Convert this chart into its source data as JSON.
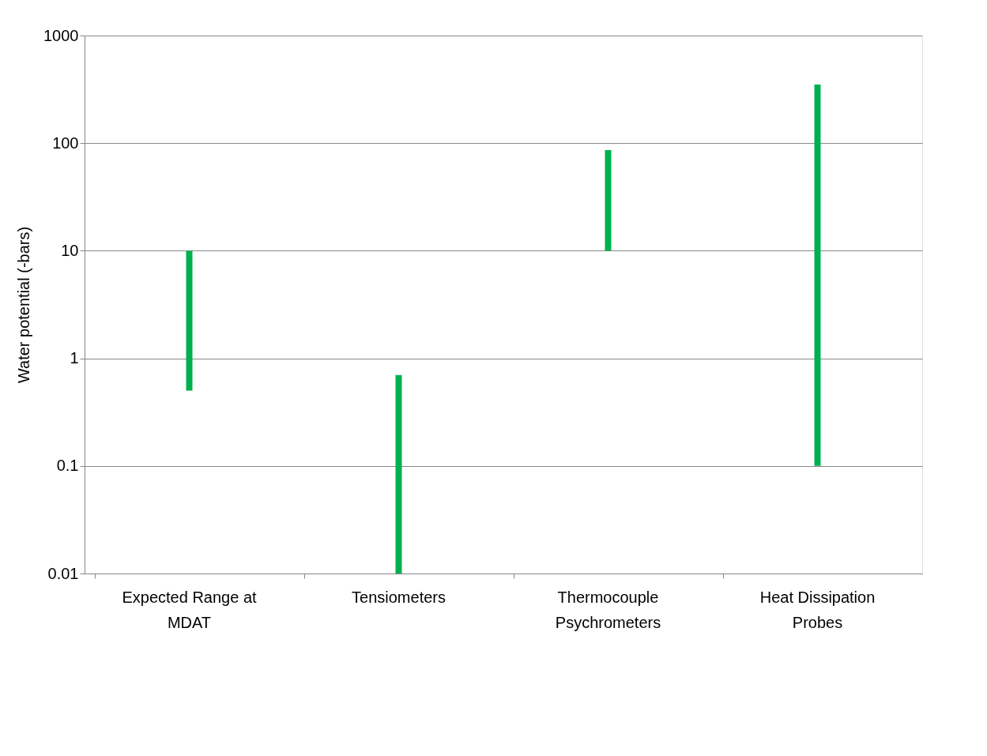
{
  "chart_data": {
    "type": "bar",
    "ylabel": "Water potential (-bars)",
    "categories": [
      "Expected Range at MDAT",
      "Tensiometers",
      "Thermocouple Psychrometers",
      "Heat Dissipation Probes"
    ],
    "base": [
      0.5,
      0.01,
      10,
      0.1
    ],
    "values": [
      9.5,
      0.69,
      76,
      349.9
    ],
    "color": "#00b050",
    "log": true,
    "grid": "y",
    "ylim": [
      0.01,
      1000
    ],
    "yticks": [
      0.01,
      0.1,
      1,
      10,
      100,
      1000
    ]
  }
}
